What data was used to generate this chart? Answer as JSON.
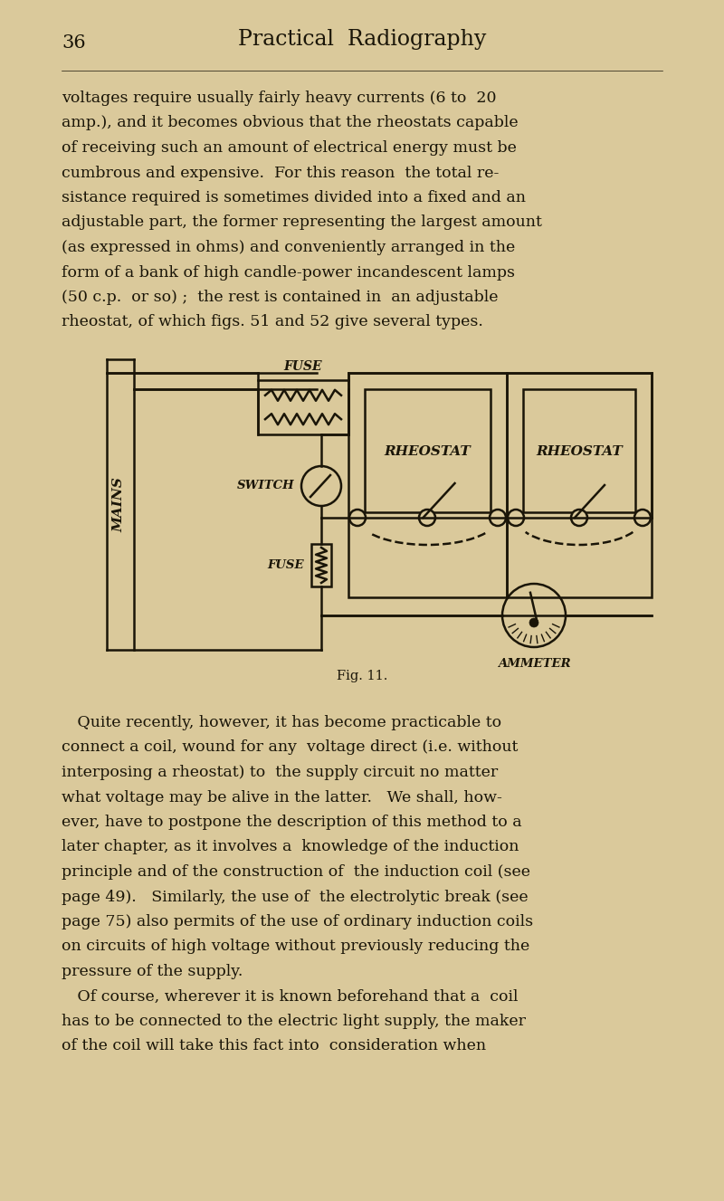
{
  "bg_color": "#dac99b",
  "text_color": "#1a1508",
  "page_width": 8.0,
  "page_height": 13.27,
  "header_page_num": "36",
  "header_title": "Practical  Radiography",
  "body_text_1_lines": [
    "voltages require usually fairly heavy currents (6 to  20",
    "amp.), and it becomes obvious that the rheostats capable",
    "of receiving such an amount of electrical energy must be",
    "cumbrous and expensive.  For this reason  the total re-",
    "sistance required is sometimes divided into a fixed and an",
    "adjustable part, the former representing the largest amount",
    "(as expressed in ohms) and conveniently arranged in the",
    "form of a bank of high candle-power incandescent lamps",
    "(50 c.p.  or so) ;  the rest is contained in  an adjustable",
    "rheostat, of which figs. 51 and 52 give several types."
  ],
  "fig_caption": "Fig. 11.",
  "body_text_2_lines": [
    " Quite recently, however, it has become practicable to",
    "connect a coil, wound for any  voltage direct (i.e. without",
    "interposing a rheostat) to  the supply circuit no matter",
    "what voltage may be alive in the latter.   We shall, how-",
    "ever, have to postpone the description of this method to a",
    "later chapter, as it involves a  knowledge of the induction",
    "principle and of the construction of  the induction coil (see",
    "page 49).   Similarly, the use of  the electrolytic break (see",
    "page 75) also permits of the use of ordinary induction coils",
    "on circuits of high voltage without previously reducing the",
    "pressure of the supply.",
    " Of course, wherever it is known beforehand that a  coil",
    "has to be connected to the electric light supply, the maker",
    "of the coil will take this fact into  consideration when"
  ]
}
